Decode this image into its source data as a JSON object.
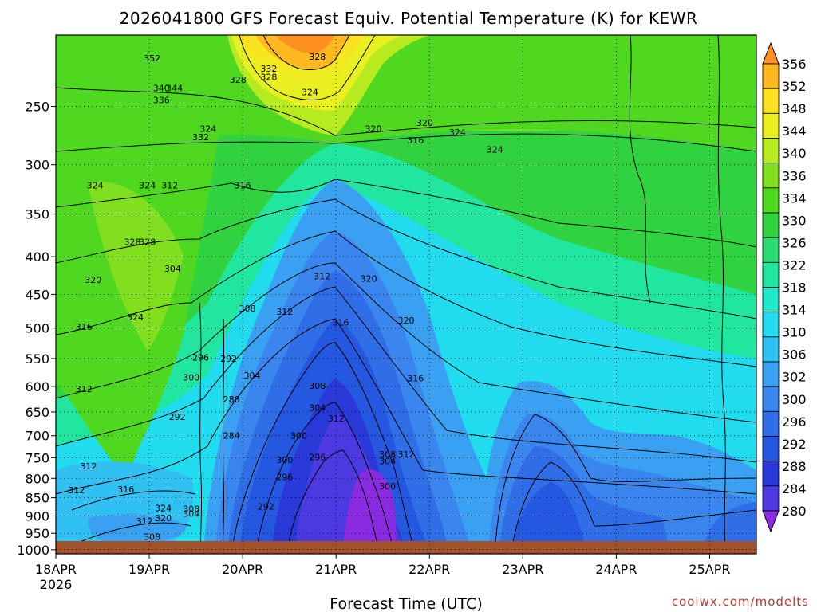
{
  "chart_data": {
    "type": "heatmap",
    "title": "2026041800 GFS Forecast Equiv. Potential Temperature (K) for KEWR",
    "xlabel": "Forecast Time (UTC)",
    "ylabel": "",
    "x_ticks": [
      "18APR",
      "19APR",
      "20APR",
      "21APR",
      "22APR",
      "23APR",
      "24APR",
      "25APR"
    ],
    "x_year_label": "2026",
    "y_ticks": [
      250,
      300,
      350,
      400,
      450,
      500,
      550,
      600,
      650,
      700,
      750,
      800,
      850,
      900,
      950,
      1000
    ],
    "y_axis": {
      "scale": "log",
      "reversed": true,
      "range": [
        200,
        1013
      ]
    },
    "x_range_days": [
      0,
      7.5
    ],
    "grid": true,
    "colorbar": {
      "levels": [
        280,
        284,
        288,
        292,
        296,
        300,
        302,
        306,
        310,
        314,
        318,
        322,
        326,
        330,
        334,
        336,
        340,
        344,
        348,
        352,
        356
      ],
      "colors": [
        "#8a2be2",
        "#4b3ae0",
        "#2a3ad8",
        "#2558e0",
        "#2f6ee6",
        "#3a86ee",
        "#3aa0f2",
        "#30c0f2",
        "#20dcee",
        "#20e8c8",
        "#20e6a0",
        "#28dc72",
        "#30d240",
        "#50d820",
        "#80e020",
        "#b8ea20",
        "#e8f020",
        "#ffe020",
        "#ffb820",
        "#ff9020"
      ]
    },
    "contour_labels": [
      {
        "x": 1.03,
        "p": 215,
        "v": "352"
      },
      {
        "x": 1.13,
        "p": 236,
        "v": "340"
      },
      {
        "x": 1.27,
        "p": 236,
        "v": "344"
      },
      {
        "x": 1.13,
        "p": 245,
        "v": "336"
      },
      {
        "x": 1.55,
        "p": 275,
        "v": "332"
      },
      {
        "x": 2.28,
        "p": 222,
        "v": "332"
      },
      {
        "x": 1.63,
        "p": 268,
        "v": "324"
      },
      {
        "x": 1.95,
        "p": 230,
        "v": "328"
      },
      {
        "x": 2.28,
        "p": 228,
        "v": "328"
      },
      {
        "x": 2.8,
        "p": 214,
        "v": "328"
      },
      {
        "x": 2.72,
        "p": 239,
        "v": "324"
      },
      {
        "x": 3.4,
        "p": 268,
        "v": "320"
      },
      {
        "x": 3.85,
        "p": 278,
        "v": "316"
      },
      {
        "x": 3.95,
        "p": 263,
        "v": "320"
      },
      {
        "x": 4.3,
        "p": 271,
        "v": "324"
      },
      {
        "x": 4.7,
        "p": 286,
        "v": "324"
      },
      {
        "x": 0.98,
        "p": 320,
        "v": "324"
      },
      {
        "x": 1.22,
        "p": 320,
        "v": "312"
      },
      {
        "x": 0.42,
        "p": 320,
        "v": "324"
      },
      {
        "x": 2.0,
        "p": 320,
        "v": "316"
      },
      {
        "x": 0.98,
        "p": 382,
        "v": "328"
      },
      {
        "x": 0.82,
        "p": 382,
        "v": "328"
      },
      {
        "x": 0.4,
        "p": 430,
        "v": "320"
      },
      {
        "x": 0.3,
        "p": 498,
        "v": "316"
      },
      {
        "x": 0.3,
        "p": 605,
        "v": "312"
      },
      {
        "x": 0.85,
        "p": 483,
        "v": "324"
      },
      {
        "x": 1.25,
        "p": 415,
        "v": "304"
      },
      {
        "x": 1.55,
        "p": 548,
        "v": "296"
      },
      {
        "x": 1.85,
        "p": 550,
        "v": "292"
      },
      {
        "x": 1.45,
        "p": 583,
        "v": "300"
      },
      {
        "x": 1.3,
        "p": 660,
        "v": "292"
      },
      {
        "x": 1.88,
        "p": 625,
        "v": "288"
      },
      {
        "x": 1.88,
        "p": 700,
        "v": "284"
      },
      {
        "x": 2.05,
        "p": 470,
        "v": "308"
      },
      {
        "x": 2.45,
        "p": 475,
        "v": "312"
      },
      {
        "x": 2.1,
        "p": 580,
        "v": "304"
      },
      {
        "x": 2.85,
        "p": 425,
        "v": "312"
      },
      {
        "x": 3.35,
        "p": 428,
        "v": "320"
      },
      {
        "x": 3.05,
        "p": 491,
        "v": "316"
      },
      {
        "x": 3.75,
        "p": 488,
        "v": "320"
      },
      {
        "x": 3.85,
        "p": 585,
        "v": "316"
      },
      {
        "x": 2.8,
        "p": 599,
        "v": "308"
      },
      {
        "x": 2.8,
        "p": 641,
        "v": "304"
      },
      {
        "x": 2.6,
        "p": 700,
        "v": "300"
      },
      {
        "x": 2.8,
        "p": 748,
        "v": "296"
      },
      {
        "x": 3.0,
        "p": 663,
        "v": "312"
      },
      {
        "x": 3.55,
        "p": 742,
        "v": "308"
      },
      {
        "x": 3.55,
        "p": 758,
        "v": "304"
      },
      {
        "x": 3.75,
        "p": 742,
        "v": "312"
      },
      {
        "x": 3.55,
        "p": 820,
        "v": "300"
      },
      {
        "x": 2.25,
        "p": 873,
        "v": "292"
      },
      {
        "x": 0.35,
        "p": 770,
        "v": "312"
      },
      {
        "x": 0.22,
        "p": 830,
        "v": "312"
      },
      {
        "x": 0.75,
        "p": 828,
        "v": "316"
      },
      {
        "x": 1.15,
        "p": 878,
        "v": "324"
      },
      {
        "x": 1.15,
        "p": 905,
        "v": "320"
      },
      {
        "x": 0.95,
        "p": 915,
        "v": "312"
      },
      {
        "x": 1.03,
        "p": 960,
        "v": "308"
      },
      {
        "x": 2.45,
        "p": 755,
        "v": "300"
      },
      {
        "x": 2.45,
        "p": 796,
        "v": "296"
      },
      {
        "x": 1.45,
        "p": 880,
        "v": "308"
      },
      {
        "x": 1.45,
        "p": 893,
        "v": "304"
      }
    ]
  },
  "credit": "coolwx.com/modelts"
}
